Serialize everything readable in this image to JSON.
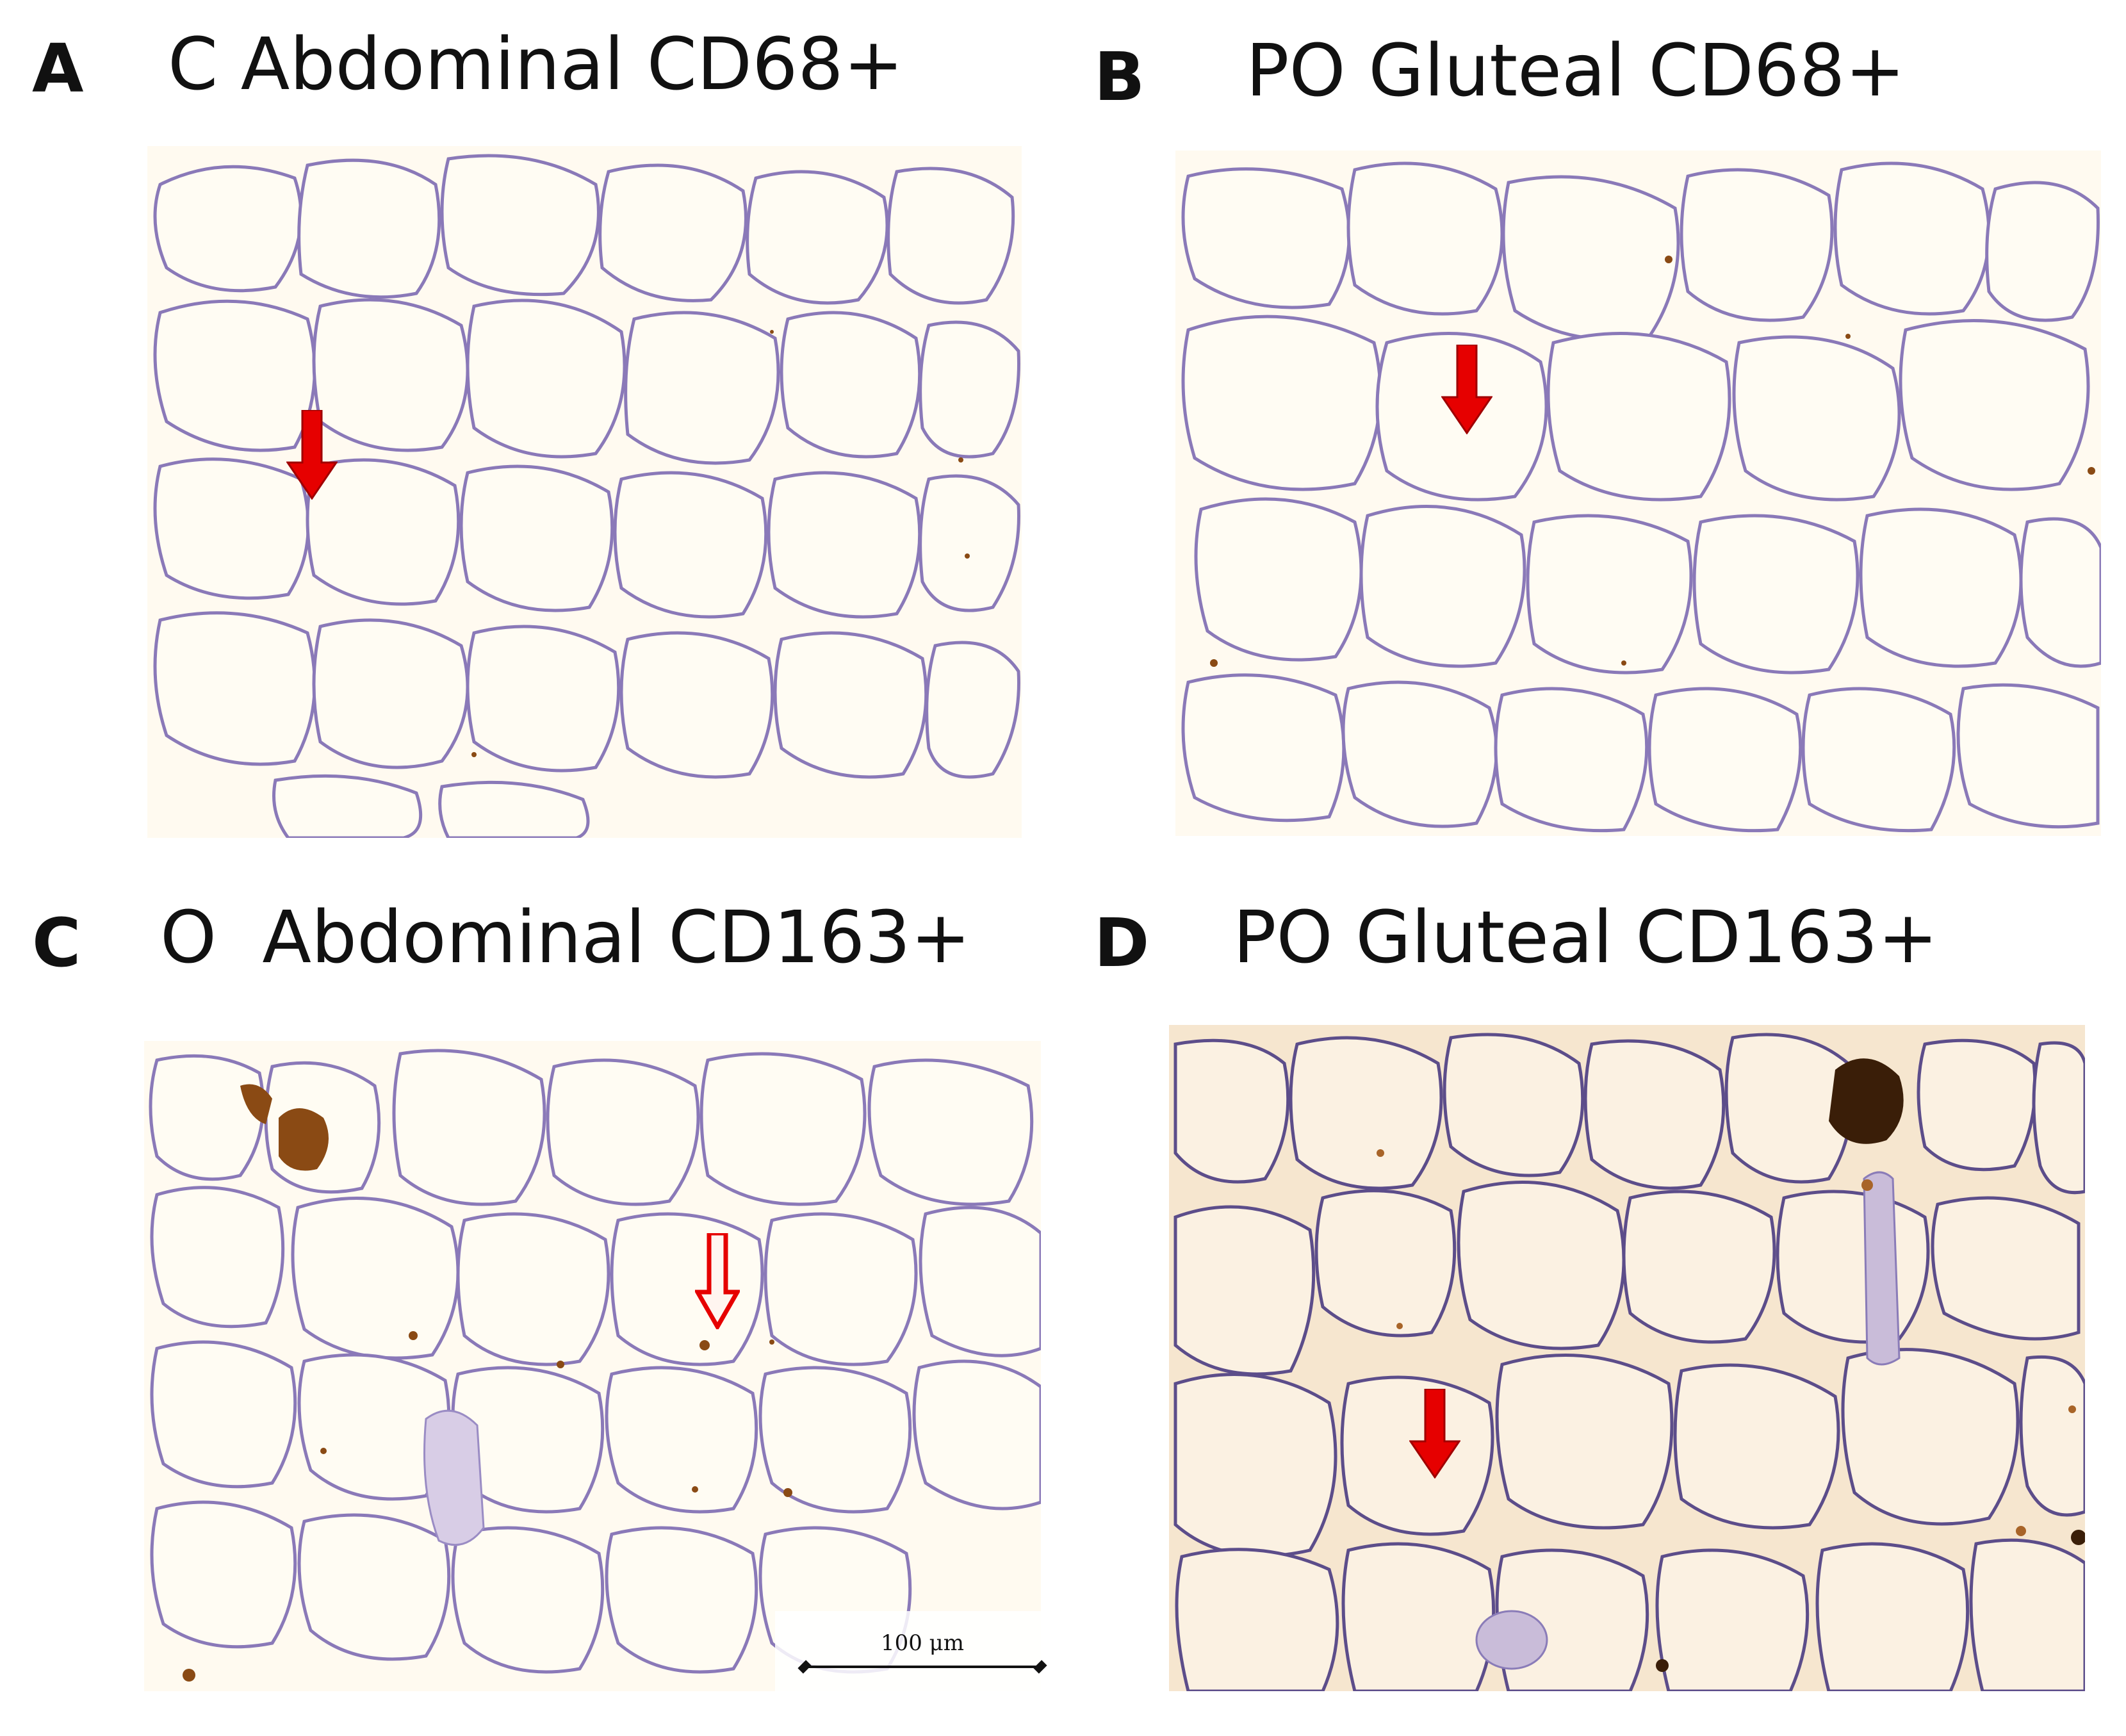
{
  "panels": [
    {
      "letter": "A",
      "title": "C Abdominal CD68+"
    },
    {
      "letter": "B",
      "title": "PO Gluteal CD68+"
    },
    {
      "letter": "C",
      "title": "O  Abdominal CD163+"
    },
    {
      "letter": "D",
      "title": "PO Gluteal CD163+"
    }
  ],
  "scale_bar": {
    "label": "100 μm"
  },
  "colors": {
    "arrow": "#e60000",
    "cell_interior": "#fffbf0",
    "membrane": "#8a79b8",
    "stain_brown": "#8a4a14",
    "panel_d_background": "#f6e6cf"
  }
}
